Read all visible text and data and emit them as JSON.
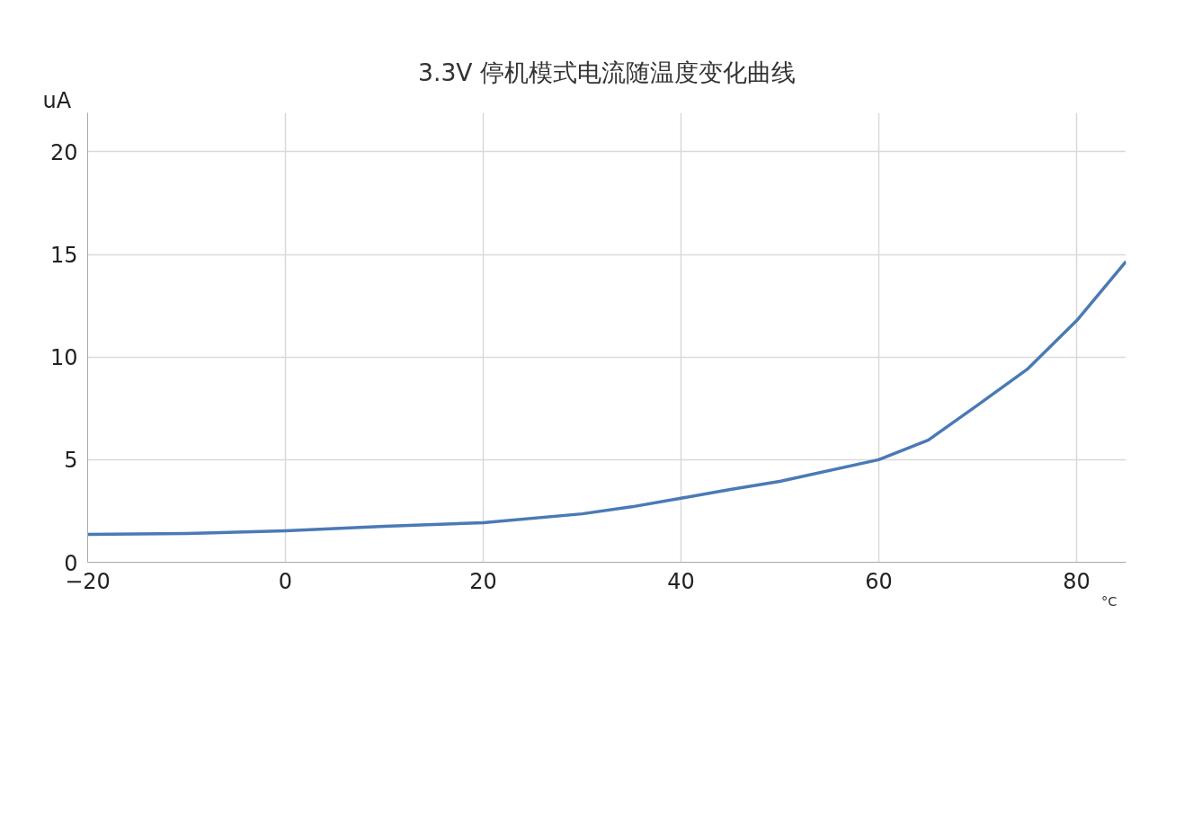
{
  "chart_data": {
    "type": "line",
    "title": "3.3V 停机模式电流随温度变化曲线",
    "xlabel": "°C",
    "ylabel": "uA",
    "x": [
      -20,
      -10,
      0,
      10,
      20,
      30,
      35,
      40,
      45,
      50,
      60,
      65,
      70,
      75,
      80,
      85
    ],
    "series": [
      {
        "color": "#4a7ab5",
        "values": [
          1.36,
          1.4,
          1.53,
          1.75,
          1.93,
          2.36,
          2.7,
          3.12,
          3.55,
          3.94,
          5.0,
          5.95,
          7.66,
          9.4,
          11.77,
          14.66
        ]
      }
    ],
    "xlim": [
      -20,
      85
    ],
    "ylim": [
      0,
      21.9
    ],
    "xticks": [
      -20,
      0,
      20,
      40,
      60,
      80
    ],
    "yticks": [
      0,
      5,
      10,
      15,
      20
    ],
    "grid": true,
    "marker": "none",
    "line_style": "solid"
  }
}
